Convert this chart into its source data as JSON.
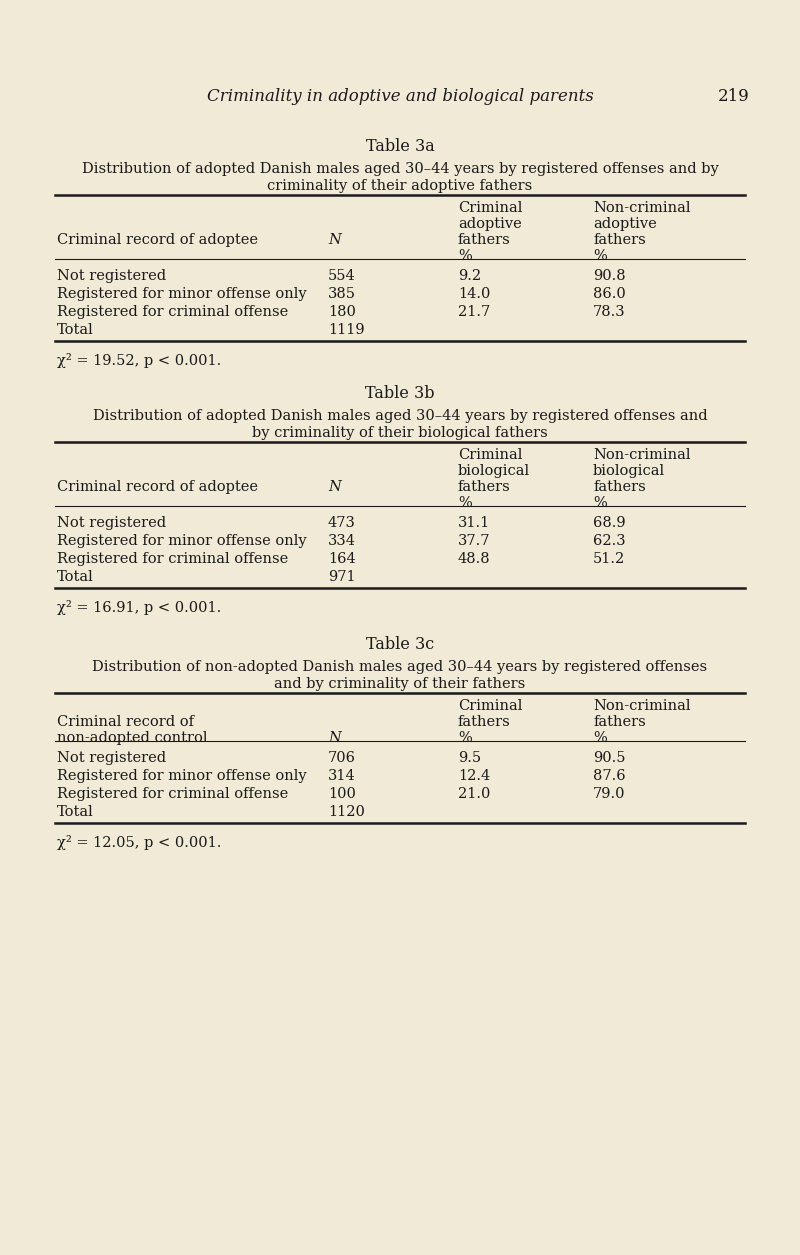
{
  "page_title": "Criminality in adoptive and biological parents",
  "page_number": "219",
  "background_color": "#f0ead6",
  "table3a": {
    "title": "Table 3a",
    "subtitle_line1": "Distribution of adopted Danish males aged 30–44 years by registered offenses and by",
    "subtitle_line2": "criminality of their adoptive fathers",
    "header": [
      [
        "",
        "",
        "Criminal",
        "Non-criminal"
      ],
      [
        "",
        "",
        "adoptive",
        "adoptive"
      ],
      [
        "Criminal record of adoptee",
        "N",
        "fathers",
        "fathers"
      ],
      [
        "",
        "",
        "%",
        "%"
      ]
    ],
    "rows": [
      [
        "Not registered",
        "554",
        "9.2",
        "90.8"
      ],
      [
        "Registered for minor offense only",
        "385",
        "14.0",
        "86.0"
      ],
      [
        "Registered for criminal offense",
        "180",
        "21.7",
        "78.3"
      ],
      [
        "Total",
        "1119",
        "",
        ""
      ]
    ],
    "chi_sq": "χ² = 19.52, p < 0.001."
  },
  "table3b": {
    "title": "Table 3b",
    "subtitle_line1": "Distribution of adopted Danish males aged 30–44 years by registered offenses and",
    "subtitle_line2": "by criminality of their biological fathers",
    "header": [
      [
        "",
        "",
        "Criminal",
        "Non-criminal"
      ],
      [
        "",
        "",
        "biological",
        "biological"
      ],
      [
        "Criminal record of adoptee",
        "N",
        "fathers",
        "fathers"
      ],
      [
        "",
        "",
        "%",
        "%"
      ]
    ],
    "rows": [
      [
        "Not registered",
        "473",
        "31.1",
        "68.9"
      ],
      [
        "Registered for minor offense only",
        "334",
        "37.7",
        "62.3"
      ],
      [
        "Registered for criminal offense",
        "164",
        "48.8",
        "51.2"
      ],
      [
        "Total",
        "971",
        "",
        ""
      ]
    ],
    "chi_sq": "χ² = 16.91, p < 0.001."
  },
  "table3c": {
    "title": "Table 3c",
    "subtitle_line1": "Distribution of non-adopted Danish males aged 30–44 years by registered offenses",
    "subtitle_line2": "and by criminality of their fathers",
    "header_3c": [
      [
        "",
        "",
        "Criminal",
        "Non-criminal"
      ],
      [
        "Criminal record of",
        "",
        "fathers",
        "fathers"
      ],
      [
        "non-adopted control",
        "N",
        "%",
        "%"
      ]
    ],
    "rows": [
      [
        "Not registered",
        "706",
        "9.5",
        "90.5"
      ],
      [
        "Registered for minor offense only",
        "314",
        "12.4",
        "87.6"
      ],
      [
        "Registered for criminal offense",
        "100",
        "21.0",
        "79.0"
      ],
      [
        "Total",
        "1120",
        "",
        ""
      ]
    ],
    "chi_sq": "χ² = 12.05, p < 0.001."
  }
}
